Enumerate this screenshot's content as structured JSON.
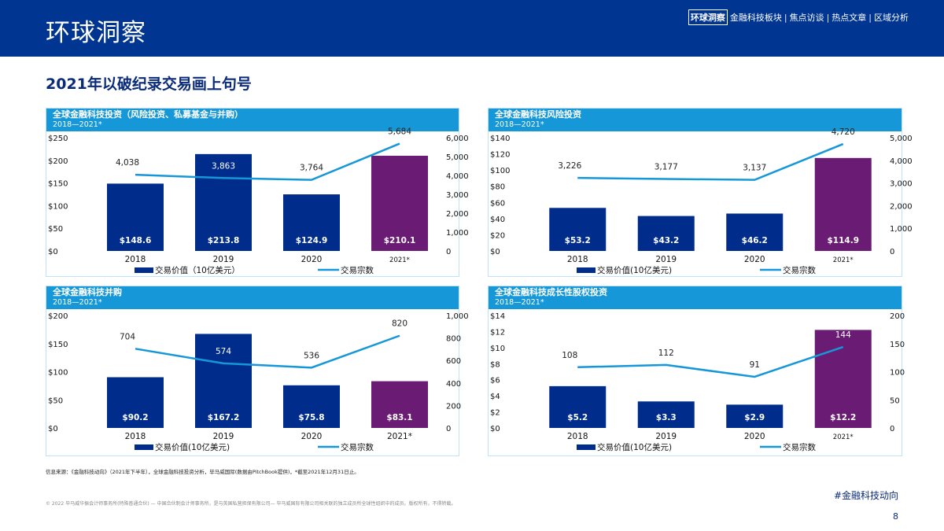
{
  "header": {
    "brand": "环球洞察",
    "nav": [
      {
        "label": "环球洞察",
        "active": true
      },
      {
        "label": "金融科技板块"
      },
      {
        "label": "焦点访谈"
      },
      {
        "label": "热点文章"
      },
      {
        "label": "区域分析"
      }
    ],
    "nav_separator": "|"
  },
  "subtitle": "2021年以破纪录交易画上句号",
  "colors": {
    "header": "#003591",
    "panel_head": "#1597d8",
    "bar": "#002c8c",
    "bar_highlight": "#6a1b73",
    "line": "#1597d8"
  },
  "chart_data": [
    {
      "type": "bar+line",
      "title": "全球金融科技投资（风险投资、私募基金与并购）",
      "subtitle": "2018—2021*",
      "categories": [
        "2018",
        "2019",
        "2020",
        "2021*"
      ],
      "left_axis": {
        "ticks": [
          "$0",
          "$50",
          "$100",
          "$150",
          "$200",
          "$250"
        ],
        "range": [
          0,
          250
        ]
      },
      "right_axis": {
        "ticks": [
          "0",
          "1,000",
          "2,000",
          "3,000",
          "4,000",
          "5,000",
          "6,000"
        ],
        "range": [
          0,
          6000
        ]
      },
      "bars": {
        "name": "交易价值（10亿美元）",
        "values": [
          148.6,
          213.8,
          124.9,
          210.1
        ],
        "labels": [
          "$148.6",
          "$213.8",
          "$124.9",
          "$210.1"
        ]
      },
      "line": {
        "name": "交易宗数",
        "values": [
          4038,
          3863,
          3764,
          5684
        ],
        "labels": [
          "4,038",
          "3,863",
          "3,764",
          "5,684"
        ]
      }
    },
    {
      "type": "bar+line",
      "title": "全球金融科技风险投资",
      "subtitle": "2018—2021*",
      "categories": [
        "2018",
        "2019",
        "2020",
        "2021*"
      ],
      "left_axis": {
        "ticks": [
          "$0",
          "$20",
          "$40",
          "$60",
          "$80",
          "$100",
          "$120",
          "$140"
        ],
        "range": [
          0,
          140
        ]
      },
      "right_axis": {
        "ticks": [
          "0",
          "1,000",
          "2,000",
          "3,000",
          "4,000",
          "5,000"
        ],
        "range": [
          0,
          5000
        ]
      },
      "bars": {
        "name": "交易价值(10亿美元)",
        "values": [
          53.2,
          43.2,
          46.2,
          114.9
        ],
        "labels": [
          "$53.2",
          "$43.2",
          "$46.2",
          "$114.9"
        ]
      },
      "line": {
        "name": "交易宗数",
        "values": [
          3226,
          3177,
          3137,
          4720
        ],
        "labels": [
          "3,226",
          "3,177",
          "3,137",
          "4,720"
        ]
      }
    },
    {
      "type": "bar+line",
      "title": "全球金融科技并购",
      "subtitle": "2018—2021*",
      "categories": [
        "2018",
        "2019",
        "2020",
        "2021*"
      ],
      "left_axis": {
        "ticks": [
          "$0",
          "$50",
          "$100",
          "$150",
          "$200"
        ],
        "range": [
          0,
          200
        ]
      },
      "right_axis": {
        "ticks": [
          "0",
          "200",
          "400",
          "600",
          "800",
          "1,000"
        ],
        "range": [
          0,
          1000
        ]
      },
      "bars": {
        "name": "交易价值(10亿美元)",
        "values": [
          90.2,
          167.2,
          75.8,
          83.1
        ],
        "labels": [
          "$90.2",
          "$167.2",
          "$75.8",
          "$83.1"
        ]
      },
      "line": {
        "name": "交易宗数",
        "values": [
          704,
          574,
          536,
          820
        ],
        "labels": [
          "704",
          "574",
          "536",
          "820"
        ]
      }
    },
    {
      "type": "bar+line",
      "title": "全球金融科技成长性股权投资",
      "subtitle": "2018—2021*",
      "categories": [
        "2018",
        "2019",
        "2020",
        "2021*"
      ],
      "left_axis": {
        "ticks": [
          "$0",
          "$2",
          "$4",
          "$6",
          "$8",
          "$10",
          "$12",
          "$14"
        ],
        "range": [
          0,
          14
        ]
      },
      "right_axis": {
        "ticks": [
          "0",
          "50",
          "100",
          "150",
          "200"
        ],
        "range": [
          0,
          200
        ]
      },
      "bars": {
        "name": "交易价值(10亿美元)",
        "values": [
          5.2,
          3.3,
          2.9,
          12.2
        ],
        "labels": [
          "$5.2",
          "$3.3",
          "$2.9",
          "$12.2"
        ]
      },
      "line": {
        "name": "交易宗数",
        "values": [
          108,
          112,
          91,
          144
        ],
        "labels": [
          "108",
          "112",
          "91",
          "144"
        ]
      }
    }
  ],
  "footer": {
    "source": "信息来源：《金融科技动向》（2021年下半年），全球金融科技投资分析，毕马威国际(数据由PitchBook提供)，*截至2021年12月31日止。",
    "copyright": "© 2022 毕马威华振会计师事务所(特殊普通合伙) — 中国合伙制会计师事务所，是与英国私营担保有限公司— 毕马威国际有限公司相关联的独立成员所全球性组织中的成员。版权所有，不得转载。",
    "tag": "#金融科技动向",
    "page": "8"
  }
}
